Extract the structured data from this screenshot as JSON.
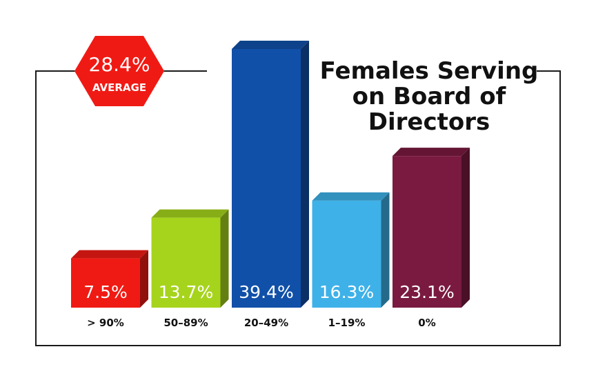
{
  "chart_data": {
    "type": "bar",
    "title_lines": [
      "Females Serving",
      "on Board of",
      "Directors"
    ],
    "categories": [
      "> 90%",
      "50–89%",
      "20–49%",
      "1–19%",
      "0%"
    ],
    "values": [
      7.5,
      13.7,
      39.4,
      16.3,
      23.1
    ],
    "value_labels": [
      "7.5%",
      "13.7%",
      "39.4%",
      "16.3%",
      "23.1%"
    ],
    "colors": [
      "#f01a14",
      "#a6d41c",
      "#1150a8",
      "#3eb1e8",
      "#7a1a40"
    ],
    "ylim": [
      0,
      40
    ],
    "grid": false,
    "average": {
      "value": "28.4%",
      "label": "AVERAGE",
      "color": "#f01a14"
    }
  }
}
